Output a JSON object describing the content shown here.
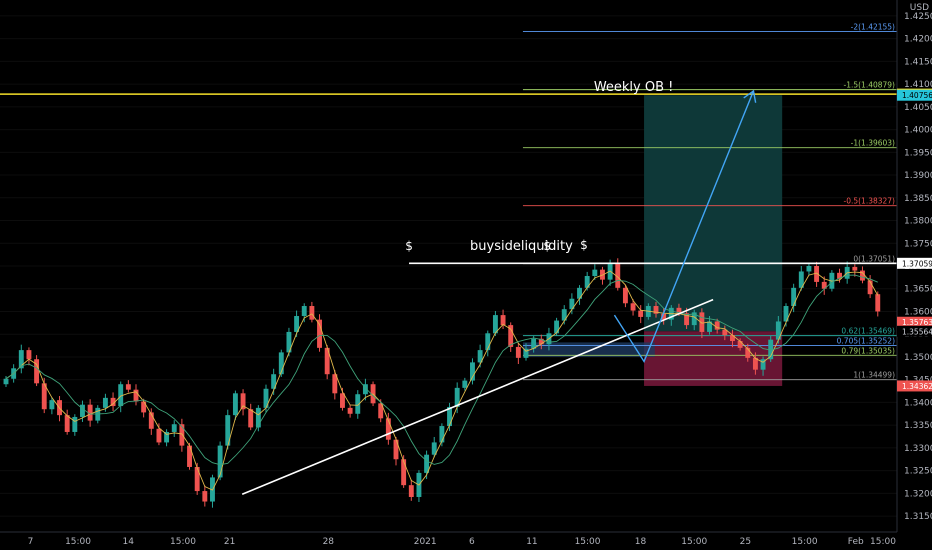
{
  "chart_data": {
    "type": "candlestick",
    "currency_label": "USD",
    "ylim": [
      1.3115,
      1.4285
    ],
    "y_ticks": [
      1.315,
      1.32,
      1.325,
      1.33,
      1.335,
      1.34,
      1.345,
      1.35,
      1.355,
      1.36,
      1.365,
      1.37,
      1.375,
      1.38,
      1.385,
      1.39,
      1.395,
      1.4,
      1.405,
      1.41,
      1.415,
      1.42,
      1.425
    ],
    "y_tick_labels": [
      "1.31500",
      "1.32000",
      "1.32500",
      "1.33000",
      "1.33500",
      "1.34000",
      "1.34500",
      "1.35000",
      "1.35500",
      "1.36000",
      "1.36500",
      "1.37000",
      "1.37500",
      "1.38000",
      "1.38500",
      "1.39000",
      "1.39500",
      "1.40000",
      "1.40500",
      "1.41000",
      "1.41500",
      "1.42000",
      "1.42500"
    ],
    "x_ticks": [
      {
        "label": "7",
        "pos": 0.034
      },
      {
        "label": "15:00",
        "pos": 0.087
      },
      {
        "label": "14",
        "pos": 0.143
      },
      {
        "label": "15:00",
        "pos": 0.204
      },
      {
        "label": "21",
        "pos": 0.256
      },
      {
        "label": "28",
        "pos": 0.366
      },
      {
        "label": "2021",
        "pos": 0.474
      },
      {
        "label": "6",
        "pos": 0.526
      },
      {
        "label": "11",
        "pos": 0.593
      },
      {
        "label": "15:00",
        "pos": 0.655
      },
      {
        "label": "18",
        "pos": 0.714
      },
      {
        "label": "15:00",
        "pos": 0.774
      },
      {
        "label": "25",
        "pos": 0.831
      },
      {
        "label": "15:00",
        "pos": 0.897
      },
      {
        "label": "Feb",
        "pos": 0.954
      },
      {
        "label": "15:00",
        "pos": 1.0
      }
    ],
    "price_path": [
      1.3452,
      1.3475,
      1.3515,
      1.3495,
      1.3442,
      1.3385,
      1.3405,
      1.3372,
      1.3335,
      1.3368,
      1.3395,
      1.336,
      1.3388,
      1.341,
      1.3392,
      1.344,
      1.3428,
      1.3402,
      1.3378,
      1.3342,
      1.3312,
      1.3335,
      1.3352,
      1.3305,
      1.3258,
      1.3205,
      1.3182,
      1.3235,
      1.3305,
      1.3372,
      1.342,
      1.3385,
      1.3345,
      1.3388,
      1.343,
      1.3462,
      1.351,
      1.3555,
      1.359,
      1.3612,
      1.3582,
      1.352,
      1.3462,
      1.342,
      1.3388,
      1.3375,
      1.3418,
      1.344,
      1.3398,
      1.3365,
      1.3318,
      1.3275,
      1.3218,
      1.3192,
      1.3245,
      1.3285,
      1.3312,
      1.3348,
      1.339,
      1.3432,
      1.3448,
      1.3488,
      1.3515,
      1.3552,
      1.3592,
      1.357,
      1.3522,
      1.3498,
      1.3518,
      1.354,
      1.3528,
      1.3552,
      1.358,
      1.3605,
      1.3628,
      1.3652,
      1.3678,
      1.3692,
      1.367,
      1.3705,
      1.3652,
      1.3618,
      1.3602,
      1.3588,
      1.3612,
      1.3595,
      1.3582,
      1.3608,
      1.3596,
      1.357,
      1.3598,
      1.3555,
      1.3578,
      1.356,
      1.3548,
      1.3535,
      1.352,
      1.3498,
      1.3472,
      1.3495,
      1.3538,
      1.3578,
      1.3612,
      1.3652,
      1.3688,
      1.37,
      1.3665,
      1.365,
      1.3685,
      1.3672,
      1.3698,
      1.369,
      1.3668,
      1.3638,
      1.36
    ],
    "trendline": {
      "start": {
        "t": 0.27,
        "y": 1.3198
      },
      "end": {
        "t": 0.795,
        "y": 1.3626
      }
    },
    "buyside_liquidity": {
      "y": 1.37059,
      "t_start": 0.456,
      "t_end": 1.0
    },
    "projection_path": [
      {
        "t": 0.685,
        "y": 1.3592
      },
      {
        "t": 0.718,
        "y": 1.349
      },
      {
        "t": 0.84,
        "y": 1.4085
      }
    ],
    "fib_levels": [
      {
        "label": "-2(1.42155)",
        "value": 1.42155,
        "color": "#5b9cf6"
      },
      {
        "label": "-1.5(1.40879)",
        "value": 1.40879,
        "color": "#9ccc65"
      },
      {
        "label": "-1(1.39603)",
        "value": 1.39603,
        "color": "#9ccc65"
      },
      {
        "label": "-0.5(1.38327)",
        "value": 1.38327,
        "color": "#ef5350"
      },
      {
        "label": "0(1.37051)",
        "value": 1.37051,
        "color": "#9e9e9e"
      },
      {
        "label": "0.62(1.35469)",
        "value": 1.35469,
        "color": "#26a69a"
      },
      {
        "label": "0.705(1.35252)",
        "value": 1.35252,
        "color": "#5b9cf6"
      },
      {
        "label": "0.79(1.35035)",
        "value": 1.35035,
        "color": "#9ccc65"
      },
      {
        "label": "1(1.34499)",
        "value": 1.34499,
        "color": "#9e9e9e"
      }
    ],
    "fib_t_start": 0.583,
    "zones": {
      "target": {
        "y_top": 1.40756,
        "y_bottom": 1.35564,
        "t_start": 0.718,
        "t_end": 0.872,
        "color": "#0f3b3b"
      },
      "stop": {
        "y_top": 1.35564,
        "y_bottom": 1.34362,
        "t_start": 0.718,
        "t_end": 0.872,
        "color": "#6e1636"
      },
      "ote": {
        "y_top": 1.3532,
        "y_bottom": 1.35,
        "t_start": 0.583,
        "t_end": 0.73,
        "color": "#1e3a5f"
      }
    },
    "weekly_ob_line": {
      "y": 1.4078,
      "color": "#f5e02a"
    },
    "annotations": [
      {
        "text": "Weekly OB !",
        "t": 0.662,
        "y": 1.4085
      },
      {
        "text": "buysideliquidity",
        "t": 0.524,
        "y": 1.3735
      },
      {
        "text": "$",
        "t": 0.456,
        "y": 1.3735
      },
      {
        "text": "$",
        "t": 0.61,
        "y": 1.3735
      },
      {
        "text": "$",
        "t": 0.651,
        "y": 1.3737
      }
    ],
    "price_labels": [
      {
        "text": "1.40780",
        "value": 1.4078,
        "bg": "#f5e02a",
        "fg": "#000000"
      },
      {
        "text": "1.40756",
        "value": 1.40756,
        "bg": "#26c6da",
        "fg": "#000000"
      },
      {
        "text": "1.37059",
        "value": 1.37059,
        "bg": "#ffffff",
        "fg": "#000000"
      },
      {
        "text": "1.35763",
        "value": 1.35763,
        "bg": "#ef5350",
        "fg": "#ffffff"
      },
      {
        "text": "1.35564",
        "value": 1.35564,
        "bg": "#000000",
        "fg": "#d1d4dc"
      },
      {
        "text": "1.34362",
        "value": 1.34362,
        "bg": "#ef5350",
        "fg": "#ffffff"
      }
    ],
    "colors": {
      "up": "#26a69a",
      "down": "#ef5350",
      "ma_fast": "#e0b84a",
      "ma_slow": "#3fa37a",
      "trendline": "#ffffff",
      "projection": "#42a5f5"
    }
  }
}
